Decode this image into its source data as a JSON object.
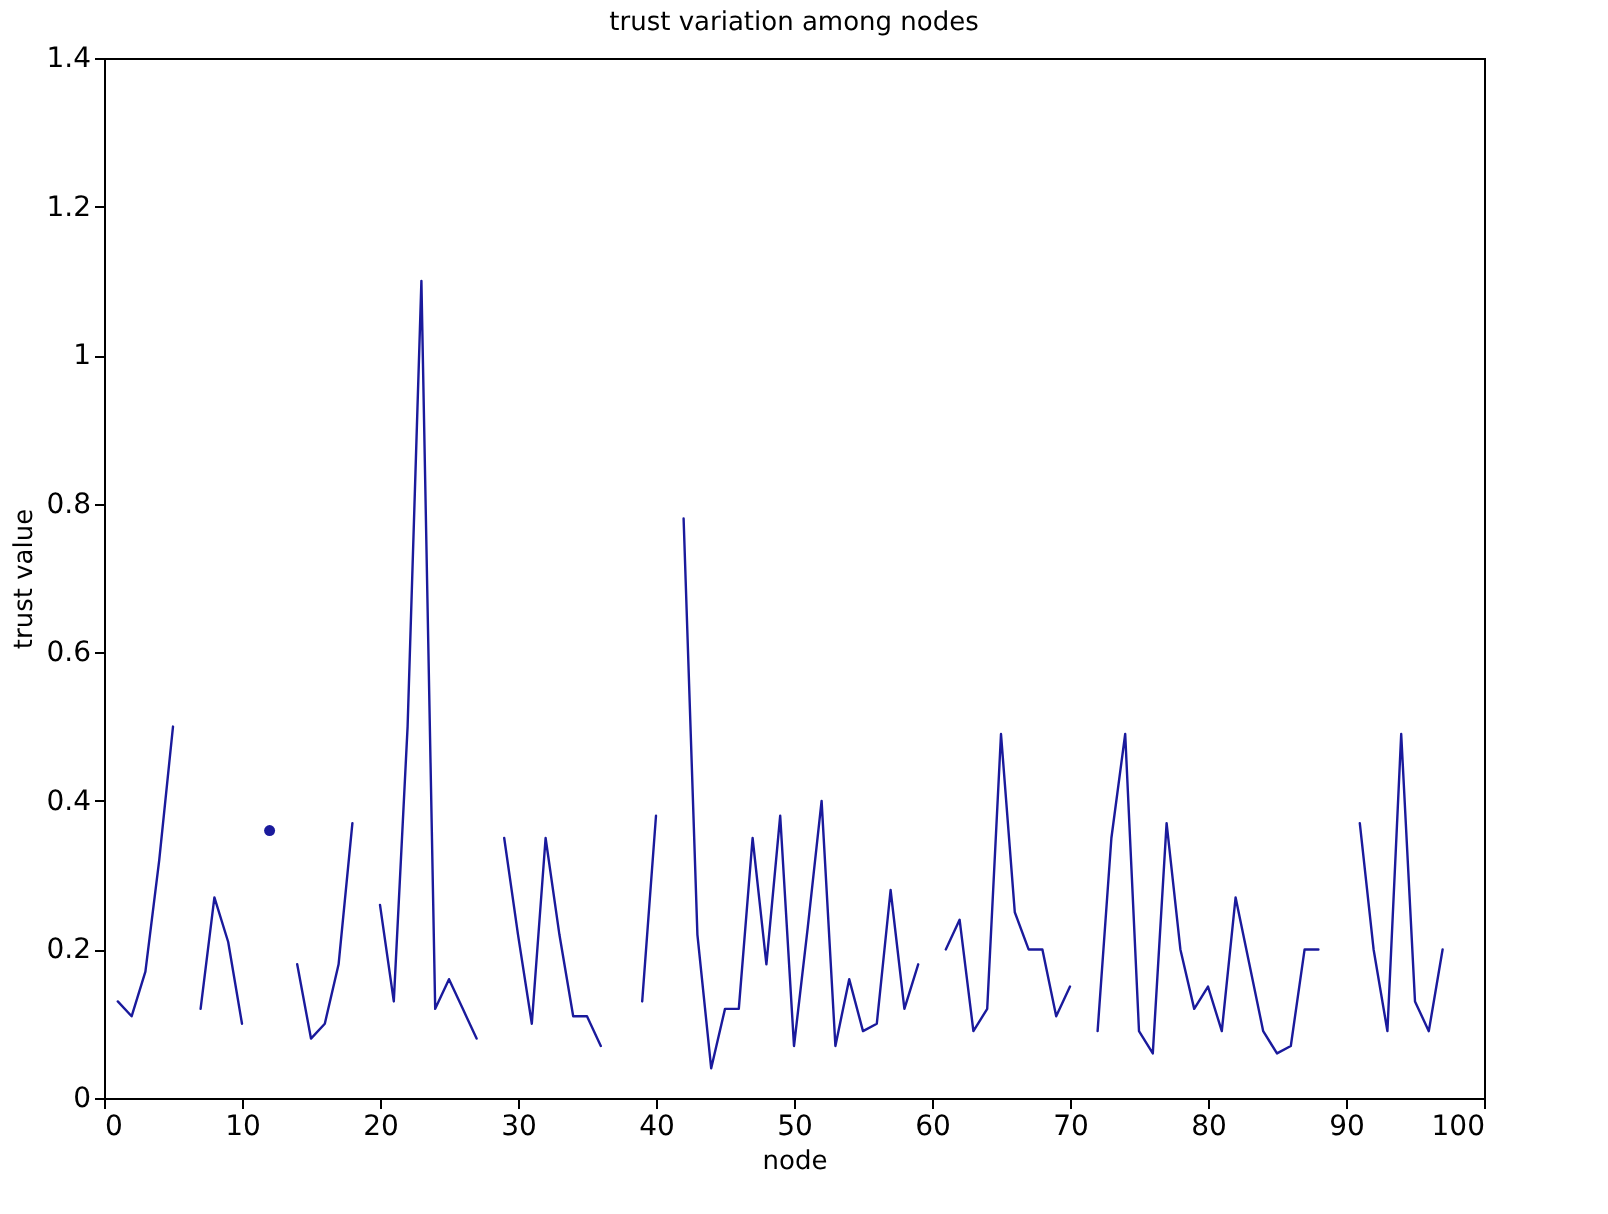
{
  "chart_data": {
    "type": "line",
    "title": "trust variation among nodes",
    "xlabel": "node",
    "ylabel": "trust value",
    "x": [
      1,
      2,
      3,
      4,
      5,
      6,
      7,
      8,
      9,
      10,
      11,
      12,
      13,
      14,
      15,
      16,
      17,
      18,
      19,
      20,
      21,
      22,
      23,
      24,
      25,
      26,
      27,
      28,
      29,
      30,
      31,
      32,
      33,
      34,
      35,
      36,
      37,
      38,
      39,
      40,
      41,
      42,
      43,
      44,
      45,
      46,
      47,
      48,
      49,
      50,
      51,
      52,
      53,
      54,
      55,
      56,
      57,
      58,
      59,
      60,
      61,
      62,
      63,
      64,
      65,
      66,
      67,
      68,
      69,
      70,
      71,
      72,
      73,
      74,
      75,
      76,
      77,
      78,
      79,
      80,
      81,
      82,
      83,
      84,
      85,
      86,
      87,
      88,
      89,
      90,
      91,
      92,
      93,
      94,
      95,
      96,
      97
    ],
    "series": [
      {
        "color": "#1a1a9c",
        "values": [
          0.13,
          0.11,
          0.17,
          0.32,
          0.5,
          null,
          0.12,
          0.27,
          0.21,
          0.1,
          null,
          0.36,
          null,
          0.18,
          0.08,
          0.1,
          0.18,
          0.37,
          null,
          0.26,
          0.13,
          0.5,
          1.1,
          0.12,
          0.16,
          0.12,
          0.08,
          null,
          0.35,
          0.22,
          0.1,
          0.35,
          0.22,
          0.11,
          0.11,
          0.07,
          null,
          null,
          0.13,
          0.38,
          null,
          0.78,
          0.22,
          0.04,
          0.12,
          0.12,
          0.35,
          0.18,
          0.38,
          0.07,
          0.23,
          0.4,
          0.07,
          0.16,
          0.09,
          0.1,
          0.28,
          0.12,
          0.18,
          null,
          0.2,
          0.24,
          0.09,
          0.12,
          0.49,
          0.25,
          0.2,
          0.2,
          0.11,
          0.15,
          null,
          0.09,
          0.35,
          0.49,
          0.09,
          0.06,
          0.37,
          0.2,
          0.12,
          0.15,
          0.09,
          0.27,
          0.18,
          0.09,
          0.06,
          0.07,
          0.2,
          0.2,
          null,
          null,
          0.37,
          0.2,
          0.09,
          0.49,
          0.13,
          0.09,
          0.2
        ]
      }
    ],
    "xlim": [
      0,
      100
    ],
    "xticks": [
      0,
      10,
      20,
      30,
      40,
      50,
      60,
      70,
      80,
      90,
      100
    ],
    "ylim": [
      0,
      1.4
    ],
    "yticks": [
      0,
      0.2,
      0.4,
      0.6,
      0.8,
      1,
      1.2,
      1.4
    ],
    "grid": false,
    "marker": "none",
    "line_style": "solid"
  }
}
